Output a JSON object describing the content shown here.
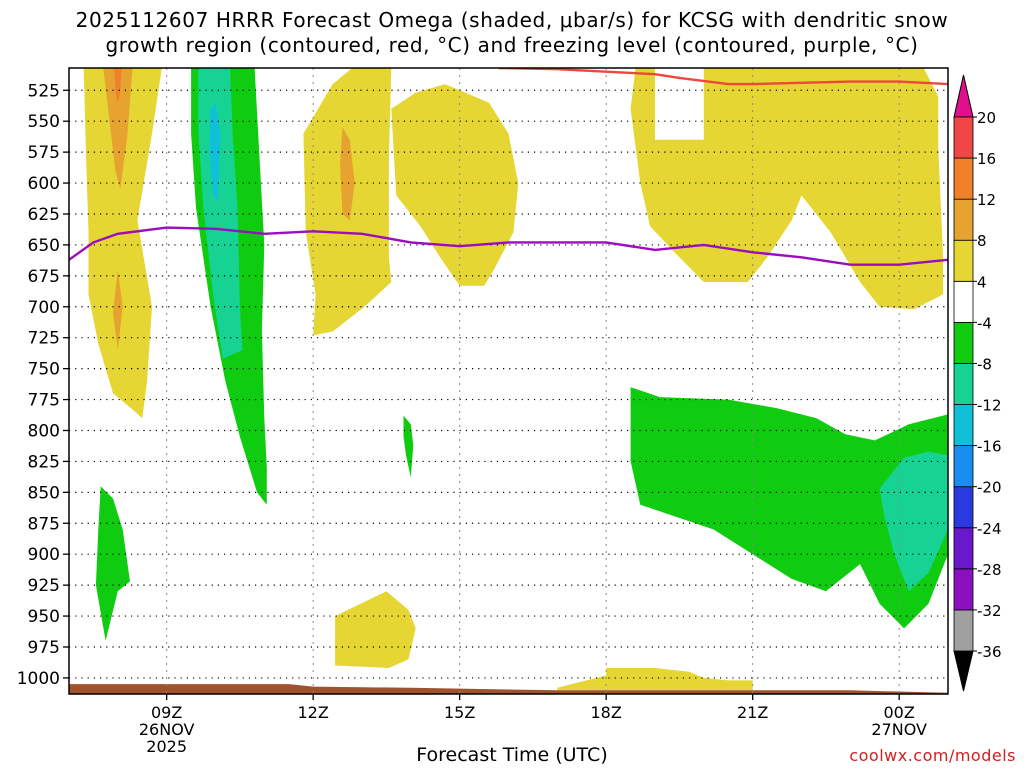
{
  "header": {
    "title_line1": "2025112607 HRRR Forecast Omega (shaded, μbar/s) for KCSG with dendritic snow",
    "title_line2": "growth region (contoured, red, °C) and freezing level (contoured, purple, °C)"
  },
  "footer": {
    "xlabel": "Forecast Time (UTC)",
    "credit": "coolwx.com/models"
  },
  "colors": {
    "background": "#ffffff",
    "dgz_line": "#f0463c",
    "freezing_line": "#9a0dc0",
    "ground": "#a0522d"
  },
  "chart_data": {
    "type": "heatmap",
    "x_unit": "forecast hour from 2025-11-26 07Z",
    "xlim": [
      0,
      18
    ],
    "y_unit": "pressure (mb)",
    "ylim": [
      1013,
      507
    ],
    "y_ticks": [
      525,
      550,
      575,
      600,
      625,
      650,
      675,
      700,
      725,
      750,
      775,
      800,
      825,
      850,
      875,
      900,
      925,
      950,
      975,
      1000
    ],
    "x_ticks": [
      {
        "x": 2,
        "lines": [
          "09Z",
          "26NOV",
          "2025"
        ]
      },
      {
        "x": 5,
        "lines": [
          "12Z"
        ]
      },
      {
        "x": 8,
        "lines": [
          "15Z"
        ]
      },
      {
        "x": 11,
        "lines": [
          "18Z"
        ]
      },
      {
        "x": 14,
        "lines": [
          "21Z"
        ]
      },
      {
        "x": 17,
        "lines": [
          "00Z",
          "27NOV"
        ]
      }
    ],
    "grid": "dotted",
    "colorbar": {
      "levels": [
        {
          "label": "-36",
          "color": "#000000"
        },
        {
          "label": "-32",
          "color": "#a0a0a0"
        },
        {
          "label": "-28",
          "color": "#8a10c0"
        },
        {
          "label": "-24",
          "color": "#6a18cc"
        },
        {
          "label": "-20",
          "color": "#2a3ae0"
        },
        {
          "label": "-16",
          "color": "#1a8ef0"
        },
        {
          "label": "-12",
          "color": "#10c0d8"
        },
        {
          "label": "-8",
          "color": "#16d394"
        },
        {
          "label": "-4",
          "color": "#10cc10"
        },
        {
          "label": "4",
          "color": "#ffffff"
        },
        {
          "label": "8",
          "color": "#e5d634"
        },
        {
          "label": "12",
          "color": "#e6a330"
        },
        {
          "label": "16",
          "color": "#f0802a"
        },
        {
          "label": "20",
          "color": "#f04646"
        },
        {
          "label": "",
          "color": "#e0108c"
        }
      ]
    },
    "omega_regions": [
      {
        "level": "4 to 8",
        "color": "#e5d634",
        "points": [
          [
            0.3,
            507
          ],
          [
            1.9,
            507
          ],
          [
            1.7,
            560
          ],
          [
            1.4,
            630
          ],
          [
            1.7,
            700
          ],
          [
            1.6,
            760
          ],
          [
            1.5,
            790
          ],
          [
            1.3,
            783
          ],
          [
            0.9,
            770
          ],
          [
            0.6,
            730
          ],
          [
            0.4,
            690
          ],
          [
            0.4,
            640
          ],
          [
            0.35,
            580
          ]
        ]
      },
      {
        "level": "8 to 12",
        "color": "#e6a330",
        "points": [
          [
            0.7,
            507
          ],
          [
            1.3,
            507
          ],
          [
            1.2,
            560
          ],
          [
            1.05,
            605
          ],
          [
            0.95,
            590
          ],
          [
            0.8,
            540
          ]
        ]
      },
      {
        "level": "12 to 16",
        "color": "#f0802a",
        "points": [
          [
            0.92,
            507
          ],
          [
            1.08,
            507
          ],
          [
            1.04,
            528
          ],
          [
            1.0,
            535
          ],
          [
            0.96,
            528
          ]
        ]
      },
      {
        "level": "4 to 8",
        "color": "#e5d634",
        "points": [
          [
            0.95,
            660
          ],
          [
            1.15,
            680
          ],
          [
            1.2,
            710
          ],
          [
            1.05,
            750
          ],
          [
            0.9,
            710
          ],
          [
            0.85,
            680
          ]
        ]
      },
      {
        "level": "8 to 12",
        "color": "#e6a330",
        "points": [
          [
            1.0,
            670
          ],
          [
            1.1,
            700
          ],
          [
            1.0,
            735
          ],
          [
            0.9,
            705
          ]
        ]
      },
      {
        "level": "-8 to -4",
        "color": "#10cc10",
        "points": [
          [
            2.5,
            507
          ],
          [
            3.8,
            507
          ],
          [
            4.0,
            650
          ],
          [
            3.95,
            720
          ],
          [
            4.0,
            790
          ],
          [
            4.05,
            830
          ],
          [
            4.05,
            860
          ],
          [
            3.85,
            850
          ],
          [
            3.5,
            805
          ],
          [
            3.2,
            760
          ],
          [
            2.9,
            700
          ],
          [
            2.6,
            620
          ],
          [
            2.5,
            560
          ]
        ]
      },
      {
        "level": "-12 to -8",
        "color": "#16d394",
        "points": [
          [
            2.65,
            507
          ],
          [
            3.3,
            507
          ],
          [
            3.35,
            560
          ],
          [
            3.45,
            620
          ],
          [
            3.5,
            700
          ],
          [
            3.55,
            735
          ],
          [
            3.15,
            742
          ],
          [
            2.95,
            690
          ],
          [
            2.75,
            620
          ],
          [
            2.65,
            560
          ]
        ]
      },
      {
        "level": "-16 to -12",
        "color": "#10c0d8",
        "points": [
          [
            2.9,
            540
          ],
          [
            3.0,
            535
          ],
          [
            3.1,
            560
          ],
          [
            3.05,
            615
          ],
          [
            2.95,
            610
          ],
          [
            2.88,
            575
          ]
        ]
      },
      {
        "level": "4 to 8",
        "color": "#e5d634",
        "points": [
          [
            4.8,
            560
          ],
          [
            5.4,
            520
          ],
          [
            5.8,
            507
          ],
          [
            6.6,
            507
          ],
          [
            6.55,
            580
          ],
          [
            6.55,
            660
          ],
          [
            6.6,
            680
          ],
          [
            6.05,
            700
          ],
          [
            5.4,
            720
          ],
          [
            5.0,
            723
          ],
          [
            5.05,
            690
          ],
          [
            4.85,
            640
          ]
        ]
      },
      {
        "level": "8 to 12",
        "color": "#e6a330",
        "points": [
          [
            5.6,
            555
          ],
          [
            5.75,
            565
          ],
          [
            5.85,
            600
          ],
          [
            5.75,
            630
          ],
          [
            5.6,
            625
          ],
          [
            5.55,
            585
          ]
        ]
      },
      {
        "level": "4 to 8",
        "color": "#e5d634",
        "points": [
          [
            6.6,
            540
          ],
          [
            7.1,
            527
          ],
          [
            7.7,
            520
          ],
          [
            8.6,
            535
          ],
          [
            9.0,
            560
          ],
          [
            9.2,
            600
          ],
          [
            9.1,
            640
          ],
          [
            8.7,
            670
          ],
          [
            8.5,
            683
          ],
          [
            8.0,
            683
          ],
          [
            7.6,
            660
          ],
          [
            7.2,
            635
          ],
          [
            6.7,
            610
          ]
        ]
      },
      {
        "level": "-8 to -4",
        "color": "#10cc10",
        "points": [
          [
            6.85,
            788
          ],
          [
            7.0,
            795
          ],
          [
            7.05,
            812
          ],
          [
            7.0,
            838
          ],
          [
            6.9,
            820
          ],
          [
            6.85,
            805
          ]
        ]
      },
      {
        "level": "4 to 8",
        "color": "#e5d634",
        "points": [
          [
            11.6,
            507
          ],
          [
            12.0,
            507
          ],
          [
            12.0,
            565
          ],
          [
            13.0,
            565
          ],
          [
            13.0,
            507
          ],
          [
            17.5,
            507
          ],
          [
            17.8,
            530
          ],
          [
            17.8,
            570
          ],
          [
            17.9,
            660
          ],
          [
            17.9,
            690
          ],
          [
            17.3,
            702
          ],
          [
            16.6,
            700
          ],
          [
            16.2,
            680
          ],
          [
            15.6,
            640
          ],
          [
            15.0,
            610
          ],
          [
            14.8,
            630
          ],
          [
            14.3,
            660
          ],
          [
            13.9,
            680
          ],
          [
            13.0,
            680
          ],
          [
            12.5,
            660
          ],
          [
            11.9,
            635
          ],
          [
            11.7,
            600
          ],
          [
            11.5,
            540
          ]
        ]
      },
      {
        "level": "-8 to -4",
        "color": "#10cc10",
        "points": [
          [
            11.5,
            765
          ],
          [
            12.1,
            773
          ],
          [
            13.5,
            775
          ],
          [
            14.5,
            782
          ],
          [
            15.3,
            790
          ],
          [
            15.9,
            803
          ],
          [
            16.5,
            808
          ],
          [
            17.2,
            795
          ],
          [
            18.0,
            787
          ],
          [
            18.0,
            900
          ],
          [
            17.6,
            940
          ],
          [
            17.1,
            960
          ],
          [
            16.6,
            940
          ],
          [
            16.2,
            908
          ],
          [
            15.5,
            930
          ],
          [
            14.8,
            920
          ],
          [
            14.0,
            900
          ],
          [
            13.2,
            880
          ],
          [
            11.7,
            860
          ],
          [
            11.5,
            825
          ]
        ]
      },
      {
        "level": "-12 to -8",
        "color": "#16d394",
        "points": [
          [
            16.6,
            847
          ],
          [
            17.1,
            822
          ],
          [
            17.6,
            817
          ],
          [
            18.0,
            820
          ],
          [
            18.0,
            880
          ],
          [
            17.6,
            915
          ],
          [
            17.2,
            930
          ],
          [
            16.9,
            900
          ],
          [
            16.7,
            870
          ]
        ]
      },
      {
        "level": "-8 to -4",
        "color": "#10cc10",
        "points": [
          [
            0.65,
            845
          ],
          [
            0.9,
            855
          ],
          [
            1.1,
            880
          ],
          [
            1.25,
            922
          ],
          [
            1.0,
            930
          ],
          [
            0.75,
            970
          ],
          [
            0.55,
            925
          ],
          [
            0.6,
            880
          ]
        ]
      },
      {
        "level": "4 to 8",
        "color": "#e5d634",
        "points": [
          [
            5.45,
            950
          ],
          [
            6.5,
            930
          ],
          [
            6.95,
            945
          ],
          [
            7.1,
            960
          ],
          [
            6.95,
            985
          ],
          [
            6.55,
            992
          ],
          [
            5.45,
            990
          ]
        ]
      },
      {
        "level": "4 to 8",
        "color": "#e5d634",
        "points": [
          [
            10.0,
            1008
          ],
          [
            11.0,
            998
          ],
          [
            11.0,
            992
          ],
          [
            12.0,
            992
          ],
          [
            12.7,
            995
          ],
          [
            13.0,
            1000
          ],
          [
            13.5,
            1002
          ],
          [
            14.0,
            1002
          ],
          [
            14.0,
            1010
          ],
          [
            12.0,
            1010
          ],
          [
            10.0,
            1010
          ]
        ]
      }
    ],
    "ground": {
      "color": "#a0522d",
      "points": [
        [
          0,
          1013
        ],
        [
          0,
          1005
        ],
        [
          4.5,
          1005
        ],
        [
          5,
          1007
        ],
        [
          7,
          1008
        ],
        [
          10,
          1010
        ],
        [
          13,
          1010
        ],
        [
          16,
          1010
        ],
        [
          18,
          1012
        ],
        [
          18,
          1013
        ]
      ]
    },
    "series": [
      {
        "name": "dendritic snow growth region (red)",
        "color": "#f0463c",
        "x": [
          8.8,
          10,
          11,
          12,
          12.5,
          13.5,
          14,
          15,
          16,
          17,
          18
        ],
        "y": [
          507,
          508,
          510,
          512,
          515,
          520,
          520,
          519,
          518,
          518,
          520
        ]
      },
      {
        "name": "freezing level (purple)",
        "color": "#9a0dc0",
        "x": [
          0,
          0.5,
          1,
          2,
          3,
          4,
          5,
          6,
          7,
          8,
          9,
          10,
          11,
          12,
          13,
          14,
          15,
          16,
          17,
          18
        ],
        "y": [
          662,
          648,
          641,
          636,
          637,
          641,
          639,
          641,
          648,
          651,
          648,
          648,
          648,
          654,
          650,
          656,
          660,
          666,
          666,
          662
        ]
      }
    ]
  }
}
